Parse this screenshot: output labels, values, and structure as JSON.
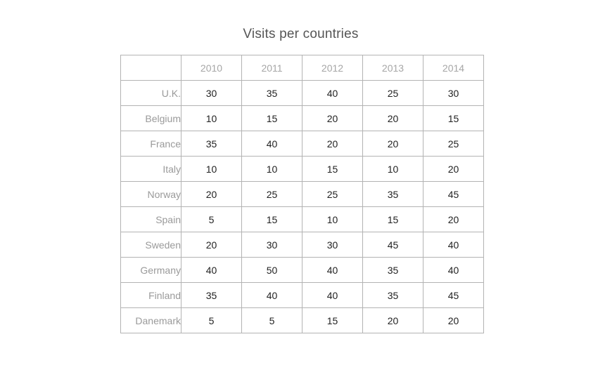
{
  "chart_data": {
    "type": "table",
    "title": "Visits per countries",
    "columns": [
      "2010",
      "2011",
      "2012",
      "2013",
      "2014"
    ],
    "rows": [
      {
        "label": "U.K.",
        "values": [
          30,
          35,
          40,
          25,
          30
        ]
      },
      {
        "label": "Belgium",
        "values": [
          10,
          15,
          20,
          20,
          15
        ]
      },
      {
        "label": "France",
        "values": [
          35,
          40,
          20,
          20,
          25
        ]
      },
      {
        "label": "Italy",
        "values": [
          10,
          10,
          15,
          10,
          20
        ]
      },
      {
        "label": "Norway",
        "values": [
          20,
          25,
          25,
          35,
          45
        ]
      },
      {
        "label": "Spain",
        "values": [
          5,
          15,
          10,
          15,
          20
        ]
      },
      {
        "label": "Sweden",
        "values": [
          20,
          30,
          30,
          45,
          40
        ]
      },
      {
        "label": "Germany",
        "values": [
          40,
          50,
          40,
          35,
          40
        ]
      },
      {
        "label": "Finland",
        "values": [
          35,
          40,
          40,
          35,
          45
        ]
      },
      {
        "label": "Danemark",
        "values": [
          5,
          5,
          15,
          20,
          20
        ]
      }
    ]
  },
  "colors": {
    "border": "#b3b3b3",
    "header_text": "#a6a6a6",
    "row_label_text": "#9a9a9a",
    "cell_text": "#222222",
    "title_text": "#555555"
  }
}
